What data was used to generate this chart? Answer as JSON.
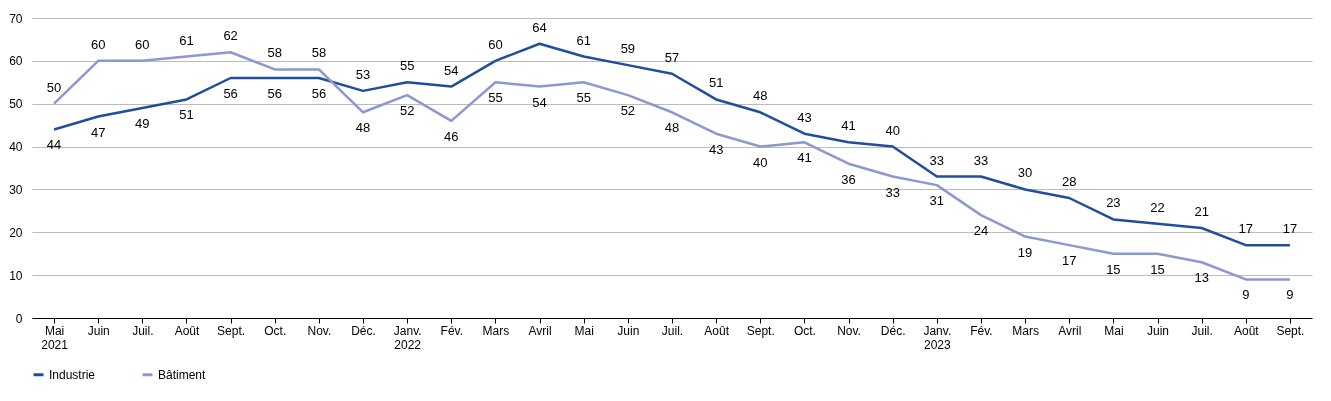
{
  "chart_data": {
    "type": "line",
    "categories": [
      "Mai\n2021",
      "Juin",
      "Juil.",
      "Août",
      "Sept.",
      "Oct.",
      "Nov.",
      "Déc.",
      "Janv.\n2022",
      "Fév.",
      "Mars",
      "Avril",
      "Mai",
      "Juin",
      "Juil.",
      "Août",
      "Sept.",
      "Oct.",
      "Nov.",
      "Déc.",
      "Janv.\n2023",
      "Fév.",
      "Mars",
      "Avril",
      "Mai",
      "Juin",
      "Juil.",
      "Août",
      "Sept."
    ],
    "series": [
      {
        "name": "Industrie",
        "color": "#1f4f9c",
        "values": [
          44,
          47,
          49,
          51,
          56,
          56,
          56,
          53,
          55,
          54,
          60,
          64,
          61,
          59,
          57,
          51,
          48,
          43,
          41,
          40,
          33,
          33,
          30,
          28,
          23,
          22,
          21,
          17,
          17
        ]
      },
      {
        "name": "Bâtiment",
        "color": "#8d97d0",
        "values": [
          50,
          60,
          60,
          61,
          62,
          58,
          58,
          48,
          52,
          46,
          55,
          54,
          55,
          52,
          48,
          43,
          40,
          41,
          36,
          33,
          31,
          24,
          19,
          17,
          15,
          15,
          13,
          9,
          9
        ]
      }
    ],
    "ylim": [
      0,
      70
    ],
    "yticks": [
      0,
      10,
      20,
      30,
      40,
      50,
      60,
      70
    ],
    "grid": "y",
    "legend": "bottom left",
    "data_labels": true,
    "marker": "none",
    "line_style": "solid"
  }
}
